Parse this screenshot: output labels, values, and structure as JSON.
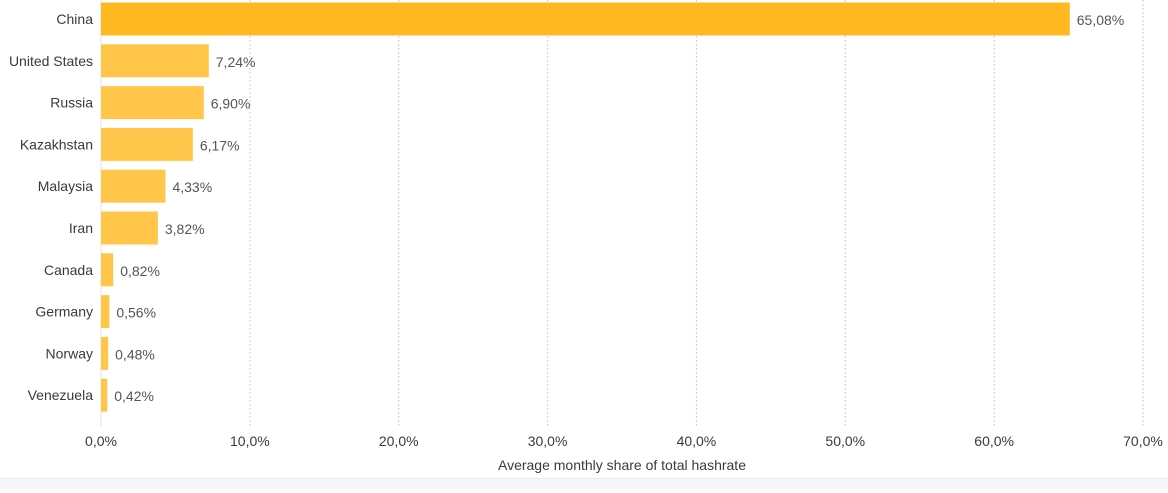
{
  "chart_data": {
    "type": "bar",
    "orientation": "horizontal",
    "categories": [
      "China",
      "United States",
      "Russia",
      "Kazakhstan",
      "Malaysia",
      "Iran",
      "Canada",
      "Germany",
      "Norway",
      "Venezuela"
    ],
    "values": [
      65.08,
      7.24,
      6.9,
      6.17,
      4.33,
      3.82,
      0.82,
      0.56,
      0.48,
      0.42
    ],
    "data_labels": [
      "65,08%",
      "7,24%",
      "6,90%",
      "6,17%",
      "4,33%",
      "3,82%",
      "0,82%",
      "0,56%",
      "0,48%",
      "0,42%"
    ],
    "xlabel": "Average monthly share of total hashrate",
    "ylabel": "",
    "title": "",
    "xlim": [
      0,
      70
    ],
    "xticks": [
      0,
      10,
      20,
      30,
      40,
      50,
      60,
      70
    ],
    "xtick_labels": [
      "0,0%",
      "10,0%",
      "20,0%",
      "30,0%",
      "40,0%",
      "50,0%",
      "60,0%",
      "70,0%"
    ],
    "grid": "vertical dotted",
    "colors": {
      "highlight_bar": "#FFB81F",
      "bar": "#FFC64A",
      "grid": "#c8c8c8",
      "axis_text": "#3a3a3a",
      "value_text": "#555555"
    }
  }
}
